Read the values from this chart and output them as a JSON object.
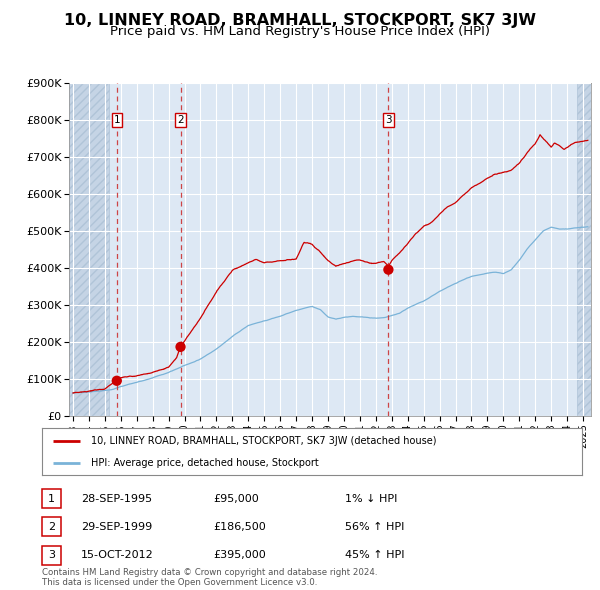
{
  "title": "10, LINNEY ROAD, BRAMHALL, STOCKPORT, SK7 3JW",
  "subtitle": "Price paid vs. HM Land Registry's House Price Index (HPI)",
  "title_fontsize": 11.5,
  "subtitle_fontsize": 9.5,
  "sale_prices": [
    95000,
    186500,
    395000
  ],
  "sale_years": [
    1995.748,
    1999.748,
    2012.789
  ],
  "sale_labels": [
    "1",
    "2",
    "3"
  ],
  "ylim": [
    0,
    900000
  ],
  "yticks": [
    0,
    100000,
    200000,
    300000,
    400000,
    500000,
    600000,
    700000,
    800000,
    900000
  ],
  "ytick_labels": [
    "£0",
    "£100K",
    "£200K",
    "£300K",
    "£400K",
    "£500K",
    "£600K",
    "£700K",
    "£800K",
    "£900K"
  ],
  "hpi_color": "#7ab3d8",
  "price_color": "#cc0000",
  "bg_color": "#dde8f4",
  "hatch_color": "#c5d4e5",
  "hatch_edge_color": "#b0c4d8",
  "grid_color": "#ffffff",
  "legend_label_price": "10, LINNEY ROAD, BRAMHALL, STOCKPORT, SK7 3JW (detached house)",
  "legend_label_hpi": "HPI: Average price, detached house, Stockport",
  "table_entries": [
    {
      "num": "1",
      "date": "28-SEP-1995",
      "price": "£95,000",
      "change": "1% ↓ HPI"
    },
    {
      "num": "2",
      "date": "29-SEP-1999",
      "price": "£186,500",
      "change": "56% ↑ HPI"
    },
    {
      "num": "3",
      "date": "15-OCT-2012",
      "price": "£395,000",
      "change": "45% ↑ HPI"
    }
  ],
  "footer": "Contains HM Land Registry data © Crown copyright and database right 2024.\nThis data is licensed under the Open Government Licence v3.0.",
  "xlim_start": 1992.75,
  "xlim_end": 2025.5,
  "hatch_left_end": 1995.25,
  "hatch_right_start": 2024.6,
  "xtick_years": [
    1993,
    1994,
    1995,
    1996,
    1997,
    1998,
    1999,
    2000,
    2001,
    2002,
    2003,
    2004,
    2005,
    2006,
    2007,
    2008,
    2009,
    2010,
    2011,
    2012,
    2013,
    2014,
    2015,
    2016,
    2017,
    2018,
    2019,
    2020,
    2021,
    2022,
    2023,
    2024,
    2025
  ]
}
